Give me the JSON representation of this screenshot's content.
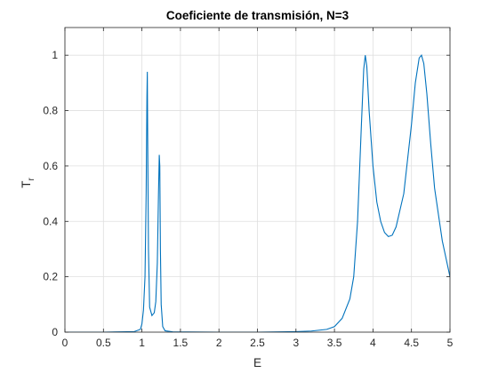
{
  "chart_data": {
    "type": "line",
    "title": "Coeficiente de transmisión, N=3",
    "xlabel": "E",
    "ylabel_main": "T",
    "ylabel_sub": "r",
    "xlim": [
      0,
      5
    ],
    "ylim": [
      0,
      1.1
    ],
    "xticks": [
      0,
      0.5,
      1,
      1.5,
      2,
      2.5,
      3,
      3.5,
      4,
      4.5,
      5
    ],
    "yticks": [
      0,
      0.2,
      0.4,
      0.6,
      0.8,
      1
    ],
    "grid": true,
    "line_color": "#0072BD",
    "series": [
      {
        "x": [
          0,
          0.5,
          0.9,
          0.98,
          1.0,
          1.02,
          1.04,
          1.055,
          1.065,
          1.07,
          1.075,
          1.085,
          1.1,
          1.13,
          1.16,
          1.18,
          1.2,
          1.215,
          1.225,
          1.232,
          1.24,
          1.25,
          1.27,
          1.3,
          1.4,
          2.0,
          2.5,
          3.0,
          3.2,
          3.4,
          3.5,
          3.6,
          3.7,
          3.75,
          3.8,
          3.85,
          3.88,
          3.9,
          3.92,
          3.95,
          4.0,
          4.05,
          4.1,
          4.15,
          4.2,
          4.25,
          4.3,
          4.4,
          4.5,
          4.55,
          4.6,
          4.63,
          4.66,
          4.7,
          4.75,
          4.8,
          4.9,
          5.0
        ],
        "y": [
          0,
          0,
          0.002,
          0.01,
          0.03,
          0.08,
          0.2,
          0.5,
          0.85,
          0.94,
          0.7,
          0.3,
          0.09,
          0.06,
          0.07,
          0.11,
          0.25,
          0.5,
          0.64,
          0.6,
          0.3,
          0.1,
          0.02,
          0.005,
          0.001,
          0,
          0,
          0.002,
          0.004,
          0.01,
          0.02,
          0.05,
          0.12,
          0.2,
          0.4,
          0.75,
          0.95,
          1.0,
          0.96,
          0.8,
          0.6,
          0.47,
          0.4,
          0.36,
          0.345,
          0.35,
          0.38,
          0.5,
          0.75,
          0.9,
          0.99,
          1.0,
          0.97,
          0.86,
          0.68,
          0.52,
          0.33,
          0.2
        ]
      }
    ]
  }
}
